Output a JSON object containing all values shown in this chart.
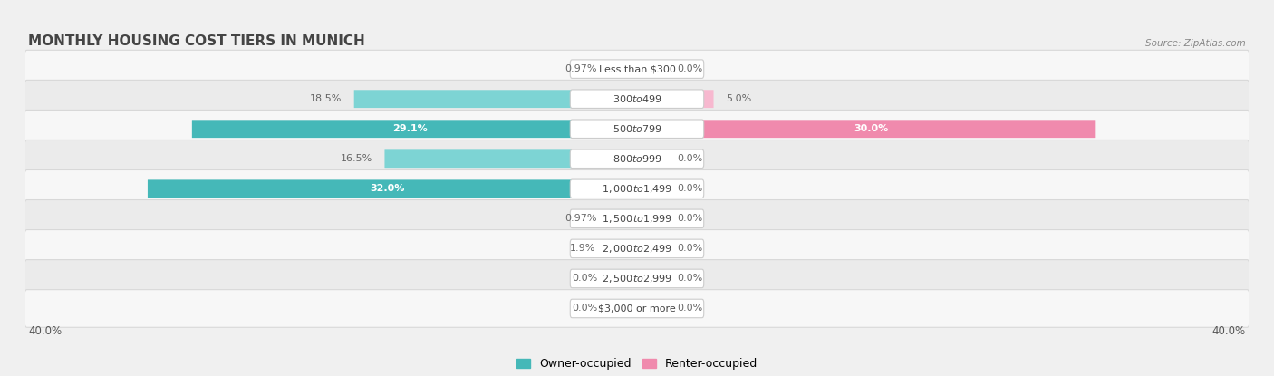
{
  "title": "MONTHLY HOUSING COST TIERS IN MUNICH",
  "source": "Source: ZipAtlas.com",
  "categories": [
    "Less than $300",
    "$300 to $499",
    "$500 to $799",
    "$800 to $999",
    "$1,000 to $1,499",
    "$1,500 to $1,999",
    "$2,000 to $2,499",
    "$2,500 to $2,999",
    "$3,000 or more"
  ],
  "owner_values": [
    0.97,
    18.5,
    29.1,
    16.5,
    32.0,
    0.97,
    1.9,
    0.0,
    0.0
  ],
  "renter_values": [
    0.0,
    5.0,
    30.0,
    0.0,
    0.0,
    0.0,
    0.0,
    0.0,
    0.0
  ],
  "owner_color": "#45b8b8",
  "renter_color": "#f08aad",
  "owner_color_light": "#7dd4d4",
  "renter_color_light": "#f7b8cf",
  "owner_label": "Owner-occupied",
  "renter_label": "Renter-occupied",
  "axis_max": 40.0,
  "min_bar_stub": 1.8,
  "background_color": "#f0f0f0",
  "row_bg_even": "#f7f7f7",
  "row_bg_odd": "#ebebeb",
  "row_border_color": "#d8d8d8",
  "title_color": "#444444",
  "value_outside_color": "#666666",
  "pill_bg": "#ffffff",
  "pill_border": "#cccccc",
  "pill_text_color": "#444444"
}
